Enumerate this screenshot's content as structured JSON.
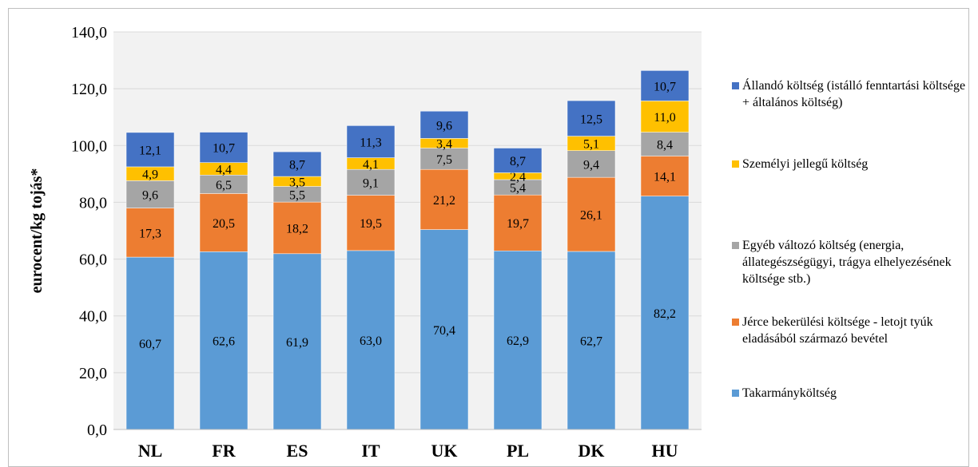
{
  "chart_data": {
    "type": "bar",
    "stacked": true,
    "ylabel": "eurocent/kg tojás*",
    "ylim": [
      0,
      140
    ],
    "ytick_step": 20,
    "ytick_labels": [
      "0,0",
      "20,0",
      "40,0",
      "60,0",
      "80,0",
      "100,0",
      "120,0",
      "140,0"
    ],
    "grid": "horizontal",
    "legend_position": "right",
    "categories": [
      "NL",
      "FR",
      "ES",
      "IT",
      "UK",
      "PL",
      "DK",
      "HU"
    ],
    "series": [
      {
        "name": "Takarmányköltség",
        "color": "#5b9bd5",
        "values": [
          60.7,
          62.6,
          61.9,
          63.0,
          70.4,
          62.9,
          62.7,
          82.2
        ],
        "labels": [
          "60,7",
          "62,6",
          "61,9",
          "63,0",
          "70,4",
          "62,9",
          "62,7",
          "82,2"
        ]
      },
      {
        "name": "Jérce bekerülési költsége - letojt tyúk eladásából származó bevétel",
        "color": "#ed7d31",
        "values": [
          17.3,
          20.5,
          18.2,
          19.5,
          21.2,
          19.7,
          26.1,
          14.1
        ],
        "labels": [
          "17,3",
          "20,5",
          "18,2",
          "19,5",
          "21,2",
          "19,7",
          "26,1",
          "14,1"
        ]
      },
      {
        "name": "Egyéb változó költség (energia, állategészségügyi, trágya elhelyezésének költsége stb.)",
        "color": "#a5a5a5",
        "values": [
          9.6,
          6.5,
          5.5,
          9.1,
          7.5,
          5.4,
          9.4,
          8.4
        ],
        "labels": [
          "9,6",
          "6,5",
          "5,5",
          "9,1",
          "7,5",
          "5,4",
          "9,4",
          "8,4"
        ]
      },
      {
        "name": "Személyi jellegű költség",
        "color": "#ffc000",
        "values": [
          4.9,
          4.4,
          3.5,
          4.1,
          3.4,
          2.4,
          5.1,
          11.0
        ],
        "labels": [
          "4,9",
          "4,4",
          "3,5",
          "4,1",
          "3,4",
          "2,4",
          "5,1",
          "11,0"
        ]
      },
      {
        "name": "Állandó költség (istálló fenntartási költsége + általános költség)",
        "color": "#4472c4",
        "values": [
          12.1,
          10.7,
          8.7,
          11.3,
          9.6,
          8.7,
          12.5,
          10.7
        ],
        "labels": [
          "12,1",
          "10,7",
          "8,7",
          "11,3",
          "9,6",
          "8,7",
          "12,5",
          "10,7"
        ]
      }
    ],
    "legend": [
      {
        "text": "Állandó költség (istálló fenntartási költsége + általános költség)",
        "color": "#4472c4"
      },
      {
        "text": "Személyi jellegű költség",
        "color": "#ffc000"
      },
      {
        "text": "Egyéb változó költség (energia, állategészségügyi, trágya elhelyezésének költsége stb.)",
        "color": "#a5a5a5"
      },
      {
        "text": "Jérce bekerülési költsége - letojt tyúk eladásából származó bevétel",
        "color": "#ed7d31"
      },
      {
        "text": "Takarmányköltség",
        "color": "#5b9bd5"
      }
    ]
  }
}
